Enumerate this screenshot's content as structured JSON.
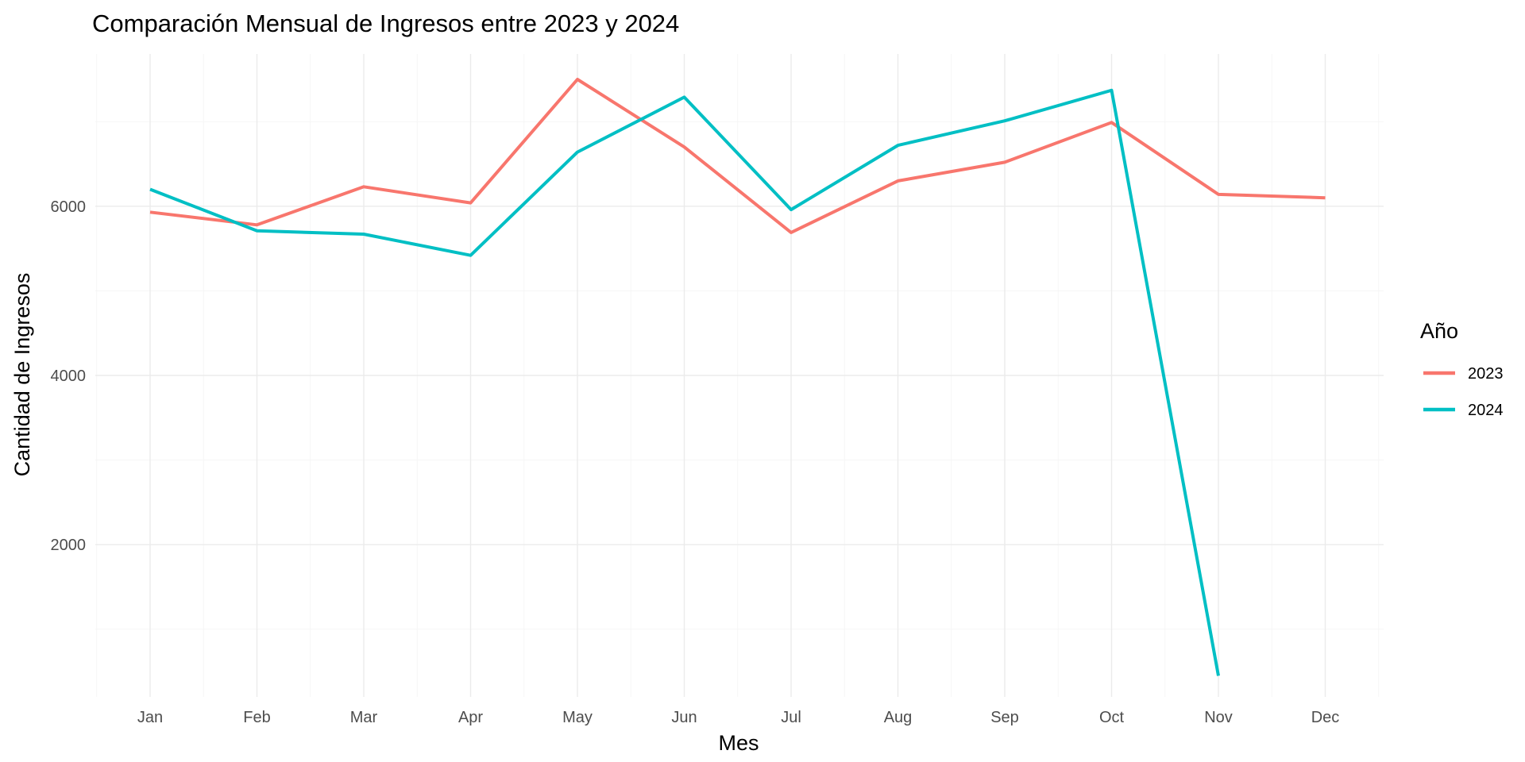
{
  "chart_data": {
    "type": "line",
    "title": "Comparación Mensual de Ingresos entre 2023 y 2024",
    "xlabel": "Mes",
    "ylabel": "Cantidad de Ingresos",
    "categories": [
      "Jan",
      "Feb",
      "Mar",
      "Apr",
      "May",
      "Jun",
      "Jul",
      "Aug",
      "Sep",
      "Oct",
      "Nov",
      "Dec"
    ],
    "y_ticks": [
      2000,
      4000,
      6000
    ],
    "y_tick_labels": [
      "2000",
      "4000",
      "6000"
    ],
    "ylim": [
      200,
      7800
    ],
    "grid": true,
    "legend": {
      "title": "Año",
      "placement": "right"
    },
    "series": [
      {
        "name": "2023",
        "color": "#F8766D",
        "values": [
          5930,
          5780,
          6230,
          6040,
          7500,
          6700,
          5690,
          6300,
          6520,
          6990,
          6140,
          6100
        ]
      },
      {
        "name": "2024",
        "color": "#00BFC4",
        "values": [
          6200,
          5710,
          5670,
          5420,
          6640,
          7290,
          5960,
          6720,
          7010,
          7370,
          450,
          null
        ]
      }
    ]
  }
}
